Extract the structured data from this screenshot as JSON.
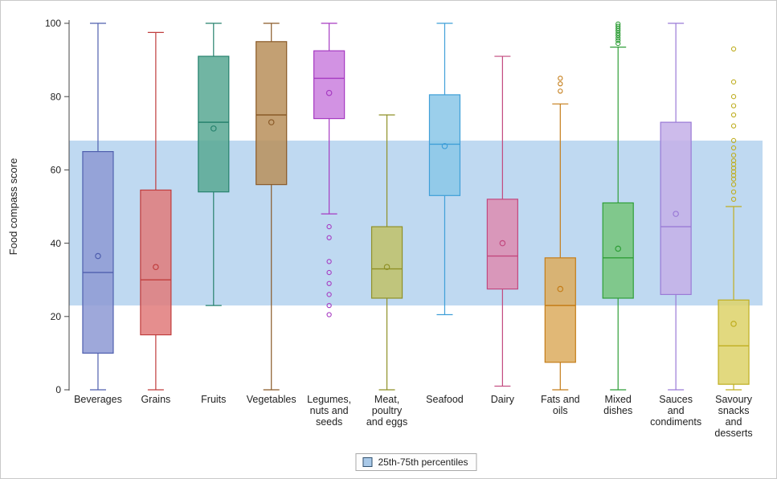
{
  "chart_data": {
    "type": "box",
    "title": "",
    "ylabel": "Food compass score",
    "xlabel": "",
    "ylim": [
      0,
      100
    ],
    "yticks": [
      0,
      20,
      40,
      60,
      80,
      100
    ],
    "grid": false,
    "legend_position": "bottom-center",
    "band": {
      "label": "25th-75th percentiles",
      "low": 23,
      "high": 68,
      "color": "#bcd7f0",
      "swatch_fill": "#a9c9e8",
      "swatch_border": "#31516f"
    },
    "series": [
      {
        "id": "beverages",
        "label": "Beverages",
        "label_lines": [
          "Beverages"
        ],
        "stroke": "#4f5fae",
        "fill": "#8d99d4",
        "whisker_low": 0,
        "q1": 10,
        "median": 32,
        "mean": 36.5,
        "q3": 65,
        "whisker_high": 100,
        "outliers": []
      },
      {
        "id": "grains",
        "label": "Grains",
        "label_lines": [
          "Grains"
        ],
        "stroke": "#c03d3d",
        "fill": "#e07a7a",
        "whisker_low": 0,
        "q1": 15,
        "median": 30,
        "mean": 33.5,
        "q3": 54.5,
        "whisker_high": 97.5,
        "outliers": []
      },
      {
        "id": "fruits",
        "label": "Fruits",
        "label_lines": [
          "Fruits"
        ],
        "stroke": "#27826e",
        "fill": "#58a893",
        "whisker_low": 23,
        "q1": 54,
        "median": 73,
        "mean": 71.3,
        "q3": 91,
        "whisker_high": 100,
        "outliers": []
      },
      {
        "id": "vegetables",
        "label": "Vegetables",
        "label_lines": [
          "Vegetables"
        ],
        "stroke": "#8a5a28",
        "fill": "#b98f5a",
        "whisker_low": 0,
        "q1": 56,
        "median": 75,
        "mean": 73,
        "q3": 95,
        "whisker_high": 100,
        "outliers": []
      },
      {
        "id": "legumes-nuts-seeds",
        "label": "Legumes, nuts and seeds",
        "label_lines": [
          "Legumes,",
          "nuts and",
          "seeds"
        ],
        "stroke": "#a63bc2",
        "fill": "#ca7fde",
        "whisker_low": 48,
        "q1": 74,
        "median": 85,
        "mean": 81,
        "q3": 92.5,
        "whisker_high": 100,
        "outliers": [
          44.5,
          41.5,
          35,
          32,
          29,
          26,
          23,
          20.5
        ]
      },
      {
        "id": "meat-poultry-eggs",
        "label": "Meat, poultry and eggs",
        "label_lines": [
          "Meat,",
          "poultry",
          "and eggs"
        ],
        "stroke": "#8f9027",
        "fill": "#c0c167",
        "whisker_low": 0,
        "q1": 25,
        "median": 33,
        "mean": 33.5,
        "q3": 44.5,
        "whisker_high": 75,
        "outliers": []
      },
      {
        "id": "seafood",
        "label": "Seafood",
        "label_lines": [
          "Seafood"
        ],
        "stroke": "#3f9fd8",
        "fill": "#8ac7e8",
        "whisker_low": 20.5,
        "q1": 53,
        "median": 67,
        "mean": 66.5,
        "q3": 80.5,
        "whisker_high": 100,
        "outliers": []
      },
      {
        "id": "dairy",
        "label": "Dairy",
        "label_lines": [
          "Dairy"
        ],
        "stroke": "#c2487e",
        "fill": "#dd8bb0",
        "whisker_low": 1,
        "q1": 27.5,
        "median": 36.5,
        "mean": 40,
        "q3": 52,
        "whisker_high": 91,
        "outliers": []
      },
      {
        "id": "fats-oils",
        "label": "Fats and oils",
        "label_lines": [
          "Fats and",
          "oils"
        ],
        "stroke": "#c47c17",
        "fill": "#dcab5e",
        "whisker_low": 0,
        "q1": 7.5,
        "median": 23,
        "mean": 27.5,
        "q3": 36,
        "whisker_high": 78,
        "outliers": [
          81.5,
          83.5,
          85
        ]
      },
      {
        "id": "mixed-dishes",
        "label": "Mixed dishes",
        "label_lines": [
          "Mixed",
          "dishes"
        ],
        "stroke": "#2f9e38",
        "fill": "#74c47a",
        "whisker_low": 0,
        "q1": 25,
        "median": 36,
        "mean": 38.5,
        "q3": 51,
        "whisker_high": 93.5,
        "outliers": [
          94.5,
          95.3,
          96,
          96.7,
          97.3,
          98,
          98.6,
          99.2,
          99.8
        ]
      },
      {
        "id": "sauces-condiments",
        "label": "Sauces and condiments",
        "label_lines": [
          "Sauces",
          "and",
          "condiments"
        ],
        "stroke": "#9a7ad6",
        "fill": "#c4afe8",
        "whisker_low": 0,
        "q1": 26,
        "median": 44.5,
        "mean": 48,
        "q3": 73,
        "whisker_high": 100,
        "outliers": []
      },
      {
        "id": "savoury-snacks-desserts",
        "label": "Savoury snacks and desserts",
        "label_lines": [
          "Savoury",
          "snacks",
          "and",
          "desserts"
        ],
        "stroke": "#bfae21",
        "fill": "#ddd268",
        "whisker_low": 0,
        "q1": 1.5,
        "median": 12,
        "mean": 18,
        "q3": 24.5,
        "whisker_high": 50,
        "outliers": [
          52,
          54,
          56,
          57.5,
          58.5,
          59.5,
          60.5,
          61.5,
          62.5,
          64,
          66,
          68,
          72,
          75,
          77.5,
          80,
          84,
          93
        ]
      }
    ]
  }
}
